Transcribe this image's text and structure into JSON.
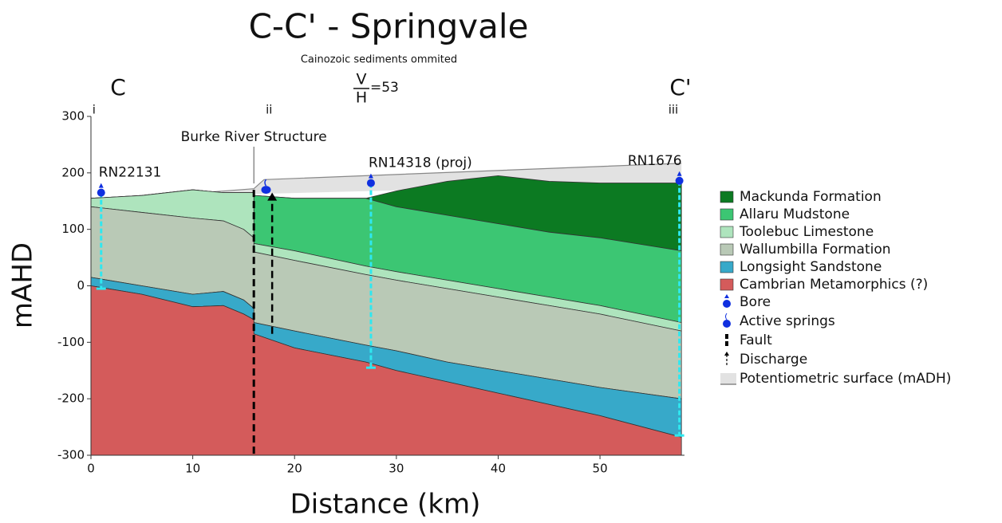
{
  "chart_data": {
    "type": "cross-section",
    "title": "C-C' - Springvale",
    "subtitle": "Cainozoic sediments ommited",
    "section_start": "C",
    "section_end": "C'",
    "scale_ratio": {
      "numerator": "V",
      "denominator": "H",
      "value": 53,
      "value_label": "=53"
    },
    "xlabel": "Distance (km)",
    "ylabel": "mAHD",
    "xlim": [
      0,
      58.3
    ],
    "ylim": [
      -300,
      300
    ],
    "xticks": [
      0,
      10,
      20,
      30,
      40,
      50
    ],
    "yticks": [
      -300,
      -200,
      -100,
      0,
      100,
      200,
      300
    ],
    "x": [
      0,
      5,
      10,
      13,
      15,
      16,
      16,
      20,
      27,
      30,
      35,
      40,
      45,
      50,
      58
    ],
    "layers": [
      {
        "name": "Mackunda Formation",
        "color": "#0c7a22",
        "top": [
          155,
          160,
          170,
          165,
          165,
          165,
          160,
          155,
          155,
          168,
          185,
          195,
          185,
          182,
          182
        ]
      },
      {
        "name": "Allaru Mudstone",
        "color": "#3cc673",
        "top": [
          155,
          160,
          170,
          165,
          165,
          165,
          160,
          155,
          155,
          140,
          125,
          110,
          95,
          85,
          62
        ]
      },
      {
        "name": "Toolebuc Limestone",
        "color": "#aee4bd",
        "top": [
          155,
          160,
          170,
          165,
          165,
          165,
          75,
          62,
          35,
          25,
          10,
          -5,
          -20,
          -35,
          -65
        ]
      },
      {
        "name": "Wallumbilla Formation",
        "color": "#b9c9b6",
        "top": [
          140,
          130,
          120,
          115,
          100,
          85,
          60,
          45,
          20,
          10,
          -5,
          -20,
          -35,
          -50,
          -80
        ]
      },
      {
        "name": "Longsight Sandstone",
        "color": "#37a9c9",
        "top": [
          15,
          0,
          -15,
          -10,
          -25,
          -40,
          -65,
          -80,
          -105,
          -115,
          -135,
          -150,
          -165,
          -180,
          -200
        ]
      },
      {
        "name": "Cambrian Metamorphics (?)",
        "color": "#d45b5b",
        "top": [
          0,
          -15,
          -37,
          -35,
          -50,
          -60,
          -85,
          -110,
          -135,
          -150,
          -170,
          -190,
          -210,
          -230,
          -268
        ]
      }
    ],
    "potentiometric_surface": {
      "x": [
        0,
        16,
        17,
        58
      ],
      "values": [
        150,
        172,
        188,
        217
      ]
    },
    "bores": [
      {
        "name": "RN22131",
        "x": 1,
        "top": 165,
        "bottom": -5
      },
      {
        "name": "RN14318 (proj)",
        "x": 27.5,
        "top": 182,
        "bottom": -145
      },
      {
        "name": "RN1676",
        "x": 57.8,
        "top": 186,
        "bottom": -265
      }
    ],
    "springs": [
      {
        "x": 17.2,
        "elevation": 170
      }
    ],
    "discharge": {
      "x": 17.8,
      "from": -85,
      "to": 165
    },
    "fault": {
      "x": 16,
      "top": 170,
      "bottom": -300
    },
    "structure": {
      "label": "Burke River Structure",
      "x": 16
    },
    "section_markers": [
      {
        "label": "i",
        "x": 0.3
      },
      {
        "label": "ii",
        "x": 17.5
      },
      {
        "label": "iii",
        "x": 57.2
      }
    ],
    "legend_symbols": [
      "Bore",
      "Active springs",
      "Fault",
      "Discharge",
      "Potentiometric surface (mADH)"
    ]
  }
}
